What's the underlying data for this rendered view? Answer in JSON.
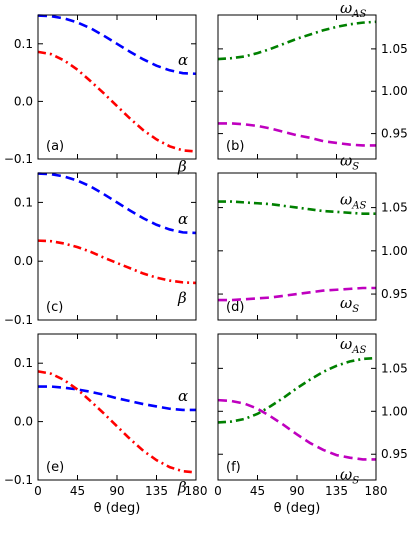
{
  "chart_data": {
    "type": "line",
    "x": [
      0,
      15,
      30,
      45,
      60,
      75,
      90,
      105,
      120,
      135,
      150,
      165,
      180
    ],
    "xticks": [
      0,
      45,
      90,
      135,
      180
    ],
    "xtick_labels": [
      "0",
      "45",
      "90",
      "135",
      "180"
    ],
    "xlabel": "θ (deg)",
    "xlim": [
      0,
      180
    ],
    "colors": {
      "alpha": "#0000ff",
      "beta": "#ff0000",
      "omega_as": "#008000",
      "omega_s": "#bf00bf"
    },
    "panels": [
      {
        "label": "(a)",
        "row": 0,
        "side": "left",
        "ylim": [
          -0.1,
          0.15
        ],
        "yticks": [
          -0.1,
          0.0,
          0.1
        ],
        "ytick_labels": [
          "−0.1",
          "0.0",
          "0.1"
        ],
        "series": [
          {
            "key": "alpha",
            "style": "dashed",
            "values": [
              0.149,
              0.148,
              0.144,
              0.137,
              0.127,
              0.114,
              0.1,
              0.086,
              0.073,
              0.062,
              0.054,
              0.049,
              0.048
            ]
          },
          {
            "key": "beta",
            "style": "dashdot",
            "values": [
              0.086,
              0.082,
              0.071,
              0.055,
              0.035,
              0.014,
              -0.008,
              -0.03,
              -0.05,
              -0.066,
              -0.078,
              -0.085,
              -0.087
            ]
          }
        ],
        "labels": [
          {
            "key": "alpha",
            "text": "α",
            "sub": ""
          },
          {
            "key": "beta",
            "text": "β",
            "sub": ""
          }
        ]
      },
      {
        "label": "(b)",
        "row": 0,
        "side": "right",
        "ylim": [
          0.92,
          1.09
        ],
        "yticks": [
          0.95,
          1.0,
          1.05
        ],
        "ytick_labels": [
          "0.95",
          "1.00",
          "1.05"
        ],
        "series": [
          {
            "key": "omega_as",
            "style": "dashdot",
            "values": [
              1.038,
              1.039,
              1.041,
              1.045,
              1.05,
              1.056,
              1.062,
              1.067,
              1.072,
              1.076,
              1.079,
              1.081,
              1.082
            ]
          },
          {
            "key": "omega_s",
            "style": "dashed",
            "values": [
              0.962,
              0.962,
              0.961,
              0.959,
              0.956,
              0.952,
              0.948,
              0.945,
              0.941,
              0.939,
              0.937,
              0.936,
              0.936
            ]
          }
        ],
        "labels": [
          {
            "key": "omega_as",
            "text": "ω",
            "sub": "AS"
          },
          {
            "key": "omega_s",
            "text": "ω",
            "sub": "S"
          }
        ]
      },
      {
        "label": "(c)",
        "row": 1,
        "side": "left",
        "ylim": [
          -0.1,
          0.15
        ],
        "yticks": [
          -0.1,
          0.0,
          0.1
        ],
        "ytick_labels": [
          "−0.1",
          "0.0",
          "0.1"
        ],
        "series": [
          {
            "key": "alpha",
            "style": "dashed",
            "values": [
              0.149,
              0.148,
              0.144,
              0.137,
              0.127,
              0.114,
              0.1,
              0.086,
              0.073,
              0.062,
              0.054,
              0.049,
              0.048
            ]
          },
          {
            "key": "beta",
            "style": "dashdot",
            "values": [
              0.035,
              0.034,
              0.03,
              0.024,
              0.016,
              0.006,
              -0.003,
              -0.012,
              -0.021,
              -0.028,
              -0.033,
              -0.036,
              -0.037
            ]
          }
        ],
        "labels": [
          {
            "key": "alpha",
            "text": "α",
            "sub": ""
          },
          {
            "key": "beta",
            "text": "β",
            "sub": ""
          }
        ]
      },
      {
        "label": "(d)",
        "row": 1,
        "side": "right",
        "ylim": [
          0.92,
          1.09
        ],
        "yticks": [
          0.95,
          1.0,
          1.05
        ],
        "ytick_labels": [
          "0.95",
          "1.00",
          "1.05"
        ],
        "series": [
          {
            "key": "omega_as",
            "style": "dashdot",
            "values": [
              1.057,
              1.057,
              1.056,
              1.055,
              1.054,
              1.052,
              1.05,
              1.048,
              1.046,
              1.045,
              1.044,
              1.043,
              1.043
            ]
          },
          {
            "key": "omega_s",
            "style": "dashed",
            "values": [
              0.943,
              0.943,
              0.944,
              0.945,
              0.946,
              0.948,
              0.95,
              0.952,
              0.954,
              0.955,
              0.956,
              0.957,
              0.957
            ]
          }
        ],
        "labels": [
          {
            "key": "omega_as",
            "text": "ω",
            "sub": "AS"
          },
          {
            "key": "omega_s",
            "text": "ω",
            "sub": "S"
          }
        ]
      },
      {
        "label": "(e)",
        "row": 2,
        "side": "left",
        "ylim": [
          -0.1,
          0.15
        ],
        "yticks": [
          -0.1,
          0.0,
          0.1
        ],
        "ytick_labels": [
          "−0.1",
          "0.0",
          "0.1"
        ],
        "series": [
          {
            "key": "alpha",
            "style": "dashed",
            "values": [
              0.06,
              0.06,
              0.058,
              0.055,
              0.051,
              0.046,
              0.04,
              0.035,
              0.03,
              0.026,
              0.022,
              0.02,
              0.02
            ]
          },
          {
            "key": "beta",
            "style": "dashdot",
            "values": [
              0.086,
              0.082,
              0.071,
              0.055,
              0.035,
              0.014,
              -0.008,
              -0.03,
              -0.05,
              -0.066,
              -0.078,
              -0.085,
              -0.087
            ]
          }
        ],
        "labels": [
          {
            "key": "alpha",
            "text": "α",
            "sub": ""
          },
          {
            "key": "beta",
            "text": "β",
            "sub": ""
          }
        ]
      },
      {
        "label": "(f)",
        "row": 2,
        "side": "right",
        "ylim": [
          0.92,
          1.09
        ],
        "yticks": [
          0.95,
          1.0,
          1.05
        ],
        "ytick_labels": [
          "0.95",
          "1.00",
          "1.05"
        ],
        "series": [
          {
            "key": "omega_as",
            "style": "dashdot",
            "values": [
              0.987,
              0.988,
              0.991,
              0.997,
              1.006,
              1.016,
              1.027,
              1.037,
              1.046,
              1.053,
              1.058,
              1.061,
              1.062
            ]
          },
          {
            "key": "omega_s",
            "style": "dashed",
            "values": [
              1.013,
              1.012,
              1.009,
              1.003,
              0.994,
              0.984,
              0.973,
              0.963,
              0.955,
              0.949,
              0.946,
              0.944,
              0.944
            ]
          }
        ],
        "labels": [
          {
            "key": "omega_as",
            "text": "ω",
            "sub": "AS"
          },
          {
            "key": "omega_s",
            "text": "ω",
            "sub": "S"
          }
        ]
      }
    ]
  }
}
